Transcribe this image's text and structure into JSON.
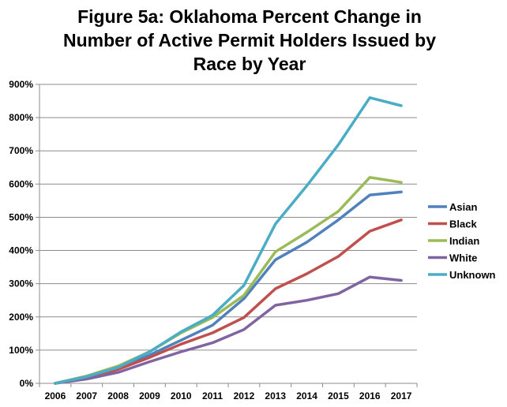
{
  "chart_data": {
    "type": "line",
    "title": "Figure 5a: Oklahoma Percent Change in Number of Active Permit Holders Issued by Race by Year",
    "title_lines": [
      "Figure 5a: Oklahoma Percent Change in",
      "Number of Active Permit Holders Issued by",
      "Race by Year"
    ],
    "xlabel": "",
    "ylabel": "",
    "x": [
      "2006",
      "2007",
      "2008",
      "2009",
      "2010",
      "2011",
      "2012",
      "2013",
      "2014",
      "2015",
      "2016",
      "2017"
    ],
    "ylim": [
      0,
      900
    ],
    "yticks": [
      0,
      100,
      200,
      300,
      400,
      500,
      600,
      700,
      800,
      900
    ],
    "ytick_labels": [
      "0%",
      "100%",
      "200%",
      "300%",
      "400%",
      "500%",
      "600%",
      "700%",
      "800%",
      "900%"
    ],
    "grid": "horizontal",
    "legend_position": "right",
    "series": [
      {
        "name": "Asian",
        "color": "#4F81BD",
        "values": [
          0,
          20,
          45,
          85,
          130,
          175,
          255,
          372,
          425,
          492,
          567,
          576
        ]
      },
      {
        "name": "Black",
        "color": "#C0504D",
        "values": [
          0,
          17,
          42,
          78,
          118,
          152,
          198,
          285,
          330,
          382,
          458,
          492
        ]
      },
      {
        "name": "Indian",
        "color": "#9BBB59",
        "values": [
          0,
          22,
          52,
          95,
          152,
          198,
          265,
          396,
          455,
          518,
          620,
          605
        ]
      },
      {
        "name": "White",
        "color": "#8064A2",
        "values": [
          0,
          13,
          33,
          65,
          95,
          122,
          162,
          235,
          250,
          270,
          320,
          310
        ]
      },
      {
        "name": "Unknown",
        "color": "#4BACC6",
        "values": [
          0,
          20,
          48,
          95,
          155,
          205,
          295,
          480,
          595,
          718,
          860,
          836
        ]
      }
    ]
  }
}
